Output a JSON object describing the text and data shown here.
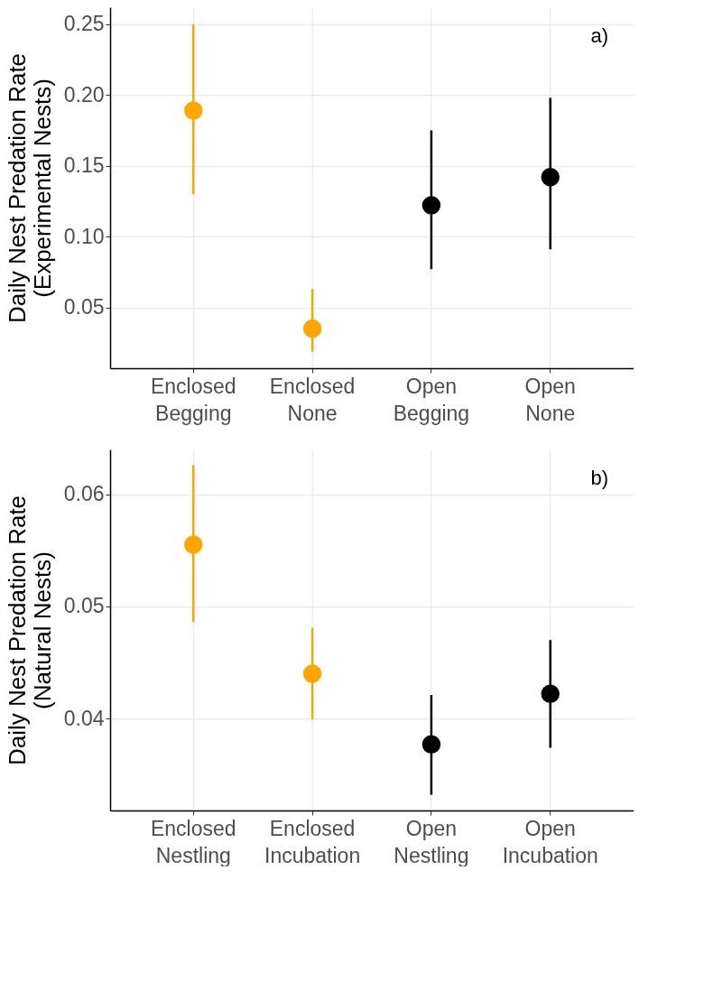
{
  "chart_data": [
    {
      "type": "scatter",
      "ylabel": "Daily Nest Predation Rate\n(Experimental Nests)",
      "annotations": [
        "a)"
      ],
      "categories": [
        "Enclosed\nBegging",
        "Enclosed\nNone",
        "Open\nBegging",
        "Open\nNone"
      ],
      "values": [
        0.189,
        0.035,
        0.122,
        0.142
      ],
      "colors": [
        "#ffa500",
        "#ffa500",
        "#000000",
        "#000000"
      ],
      "errors": [
        [
          0.13,
          0.25
        ],
        [
          0.0186,
          0.063
        ],
        [
          0.077,
          0.175
        ],
        [
          0.091,
          0.198
        ]
      ],
      "ylim": [
        0.007,
        0.262
      ],
      "yticks": [
        0.05,
        {
          "value": 0.1,
          "label": "0.10"
        },
        0.15,
        {
          "value": 0.2,
          "label": "0.20"
        },
        0.25
      ],
      "grid": true,
      "marker": "circle"
    },
    {
      "type": "scatter",
      "ylabel": "Daily Nest Predation Rate\n(Natural Nests)",
      "annotations": [
        "b)"
      ],
      "categories": [
        "Enclosed\nNestling",
        "Enclosed\nIncubation",
        "Open\nNestling",
        "Open\nIncubation"
      ],
      "values": [
        0.0555,
        0.044,
        0.0377,
        0.0422
      ],
      "colors": [
        "#ffa500",
        "#ffa500",
        "#000000",
        "#000000"
      ],
      "errors": [
        [
          0.0486,
          0.0626
        ],
        [
          0.0399,
          0.0481
        ],
        [
          0.0332,
          0.0421
        ],
        [
          0.0374,
          0.047
        ]
      ],
      "ylim": [
        0.0318,
        0.064
      ],
      "yticks": [
        0.04,
        0.05,
        0.06
      ],
      "grid": true,
      "marker": "circle"
    }
  ]
}
